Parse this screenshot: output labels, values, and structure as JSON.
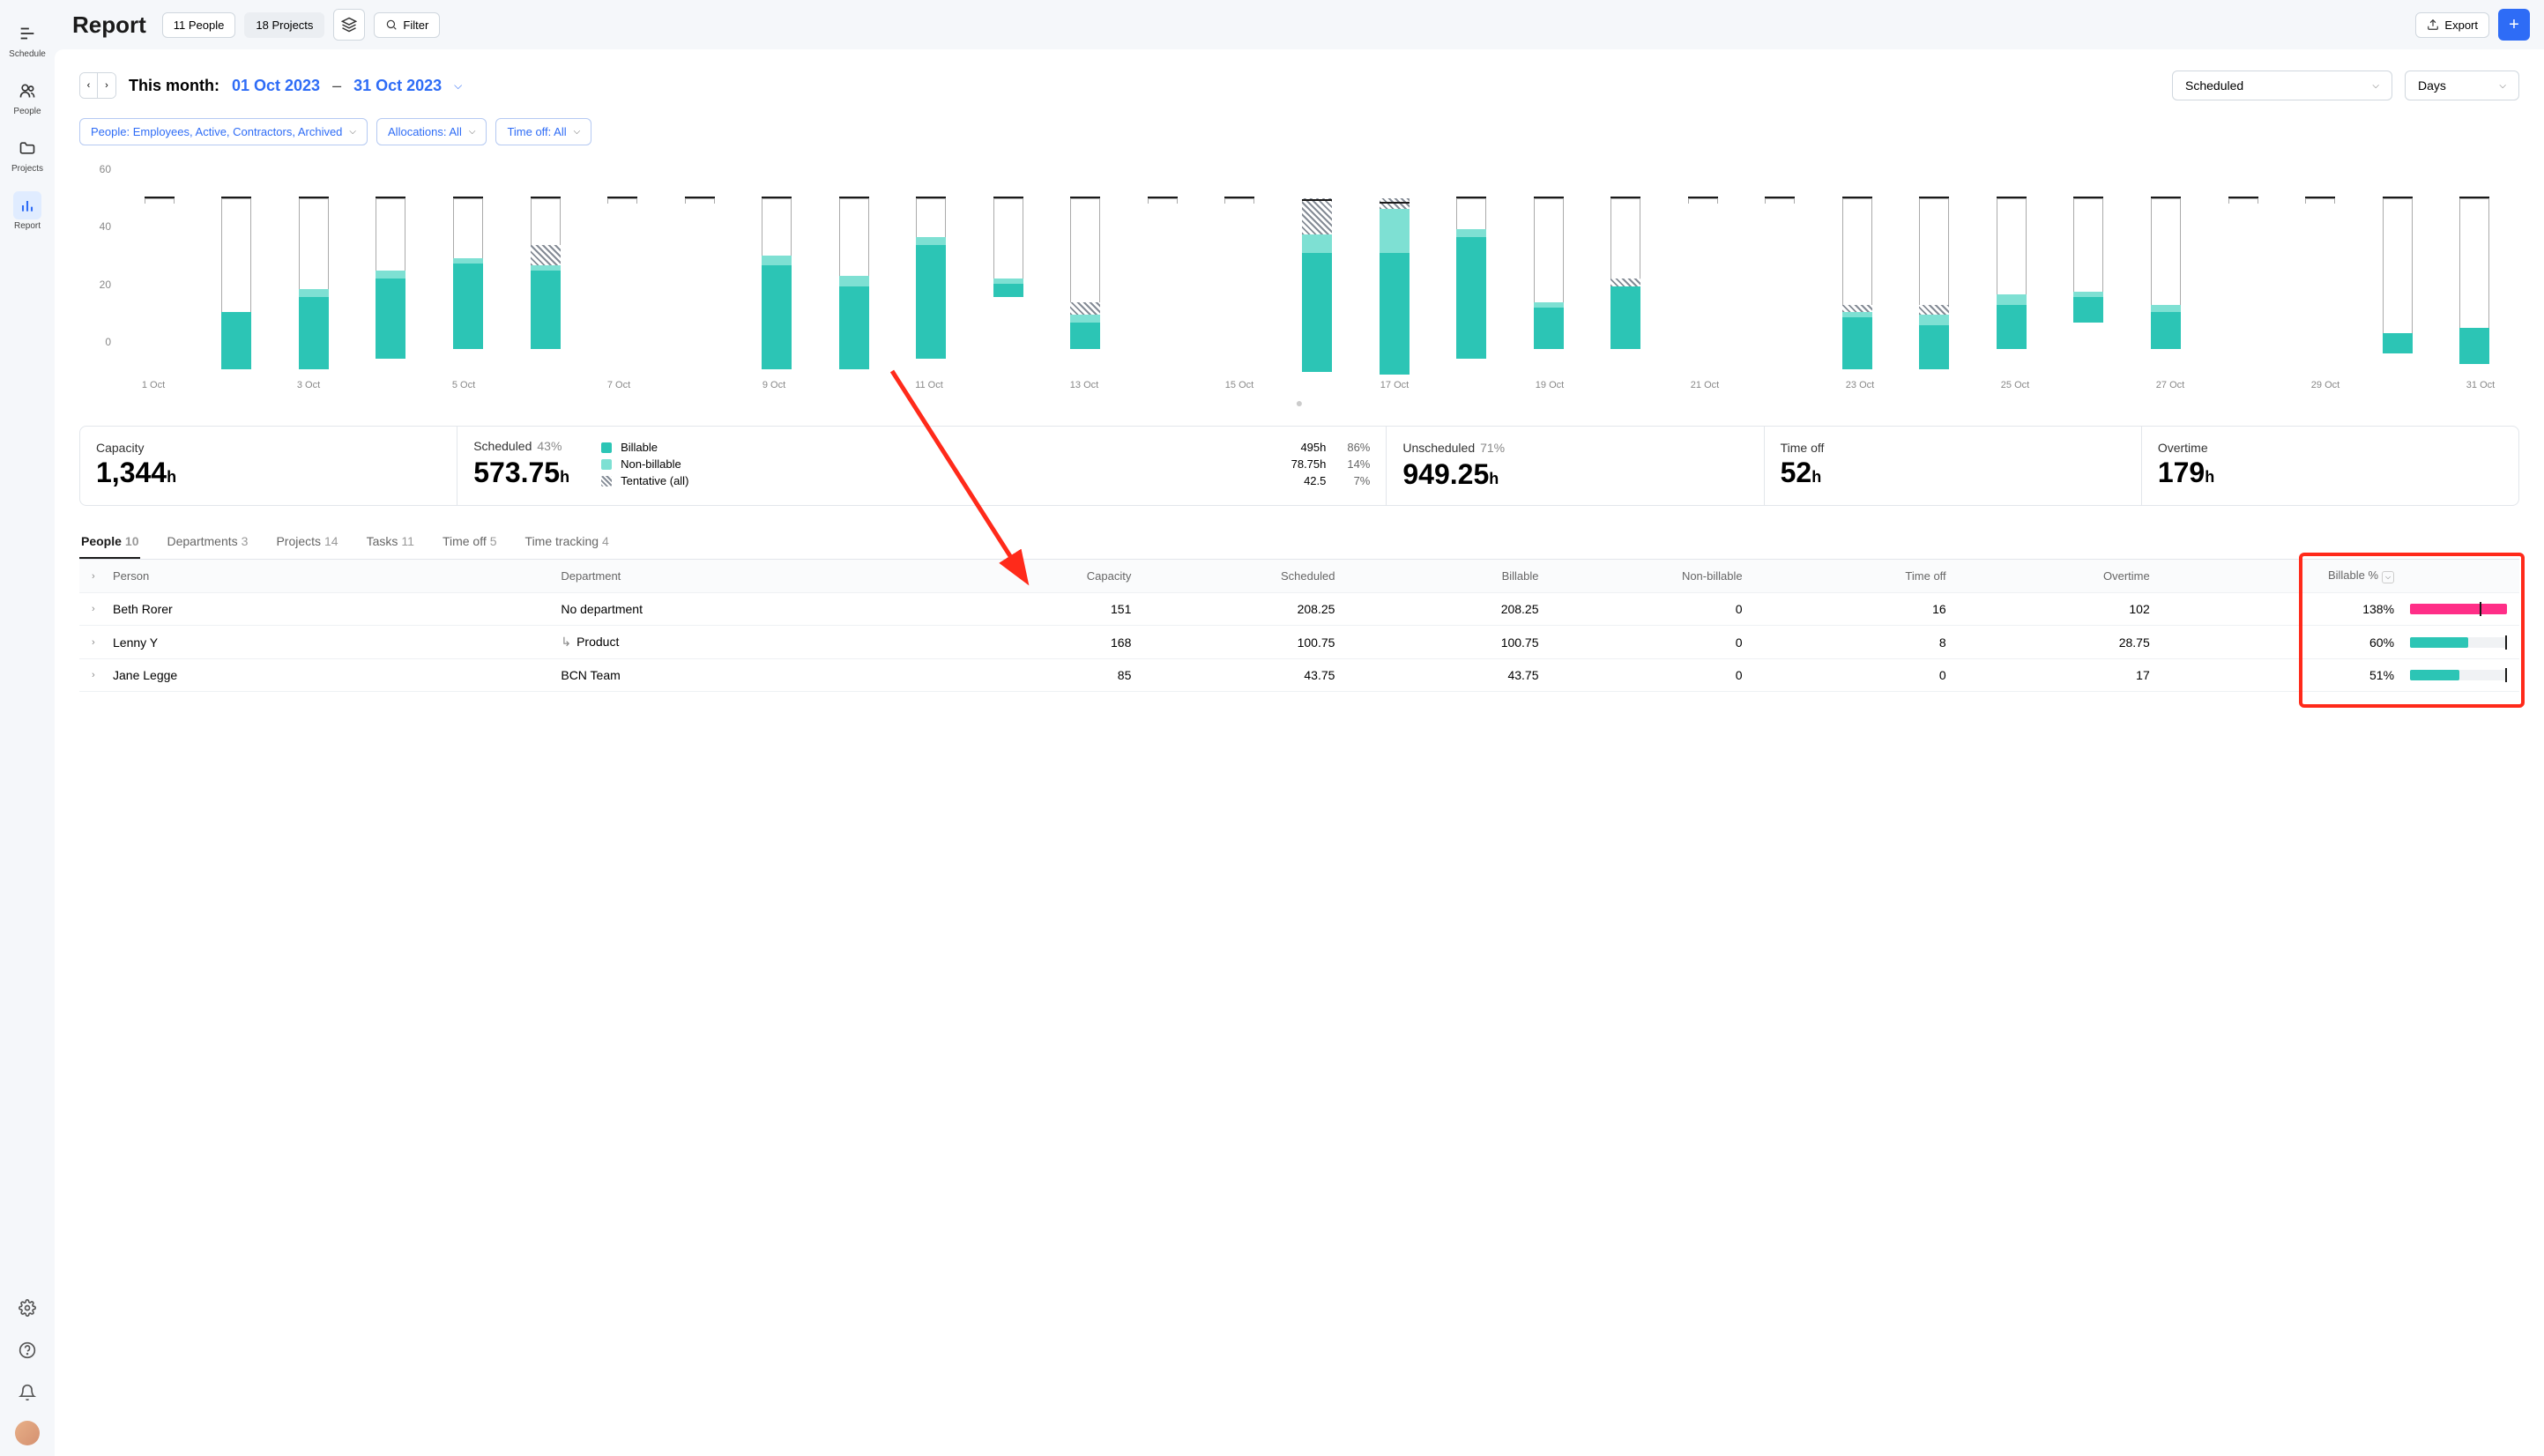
{
  "nav": {
    "items": [
      {
        "label": "Schedule",
        "icon": "schedule"
      },
      {
        "label": "People",
        "icon": "people"
      },
      {
        "label": "Projects",
        "icon": "projects"
      },
      {
        "label": "Report",
        "icon": "report",
        "active": true
      }
    ]
  },
  "header": {
    "title": "Report",
    "people_pill": "11 People",
    "projects_pill": "18 Projects",
    "filter_label": "Filter",
    "export_label": "Export"
  },
  "date": {
    "label": "This month:",
    "start": "01 Oct 2023",
    "end": "31 Oct 2023",
    "mode": "Scheduled",
    "unit": "Days"
  },
  "filters": [
    "People: Employees, Active, Contractors, Archived",
    "Allocations: All",
    "Time off: All"
  ],
  "chart": {
    "ymax": 68,
    "yticks": [
      "60",
      "40",
      "20",
      "0"
    ],
    "colors": {
      "billable": "#2cc5b5",
      "nonbillable": "#7ee0d3",
      "tentative_pattern": "#848b95",
      "capacity_line": "#1a1a1a",
      "unscheduled": "#ffffff"
    },
    "days": [
      {
        "label": "1 Oct",
        "billable": 0,
        "nonbillable": 0,
        "tentative": 0,
        "capacity": 2,
        "unscheduled": 2
      },
      {
        "label": "",
        "billable": 22,
        "nonbillable": 0,
        "tentative": 0,
        "capacity": 66,
        "unscheduled": 44
      },
      {
        "label": "3 Oct",
        "billable": 28,
        "nonbillable": 3,
        "tentative": 0,
        "capacity": 66,
        "unscheduled": 35
      },
      {
        "label": "",
        "billable": 31,
        "nonbillable": 3,
        "tentative": 0,
        "capacity": 62,
        "unscheduled": 28
      },
      {
        "label": "5 Oct",
        "billable": 33,
        "nonbillable": 2,
        "tentative": 0,
        "capacity": 58,
        "unscheduled": 23
      },
      {
        "label": "",
        "billable": 30,
        "nonbillable": 2,
        "tentative": 8,
        "capacity": 58,
        "unscheduled": 18
      },
      {
        "label": "7 Oct",
        "billable": 0,
        "nonbillable": 0,
        "tentative": 0,
        "capacity": 2,
        "unscheduled": 2
      },
      {
        "label": "",
        "billable": 0,
        "nonbillable": 0,
        "tentative": 0,
        "capacity": 2,
        "unscheduled": 2
      },
      {
        "label": "9 Oct",
        "billable": 40,
        "nonbillable": 4,
        "tentative": 0,
        "capacity": 66,
        "unscheduled": 22
      },
      {
        "label": "",
        "billable": 32,
        "nonbillable": 4,
        "tentative": 0,
        "capacity": 66,
        "unscheduled": 30
      },
      {
        "label": "11 Oct",
        "billable": 44,
        "nonbillable": 3,
        "tentative": 0,
        "capacity": 62,
        "unscheduled": 15
      },
      {
        "label": "",
        "billable": 5,
        "nonbillable": 2,
        "tentative": 0,
        "capacity": 38,
        "unscheduled": 31
      },
      {
        "label": "13 Oct",
        "billable": 10,
        "nonbillable": 3,
        "tentative": 5,
        "capacity": 58,
        "unscheduled": 40
      },
      {
        "label": "",
        "billable": 0,
        "nonbillable": 0,
        "tentative": 0,
        "capacity": 2,
        "unscheduled": 2
      },
      {
        "label": "15 Oct",
        "billable": 0,
        "nonbillable": 0,
        "tentative": 0,
        "capacity": 2,
        "unscheduled": 2
      },
      {
        "label": "",
        "billable": 46,
        "nonbillable": 7,
        "tentative": 14,
        "capacity": 66,
        "unscheduled": 0
      },
      {
        "label": "17 Oct",
        "billable": 47,
        "nonbillable": 17,
        "tentative": 4,
        "capacity": 66,
        "unscheduled": 0
      },
      {
        "label": "",
        "billable": 47,
        "nonbillable": 3,
        "tentative": 0,
        "capacity": 62,
        "unscheduled": 12
      },
      {
        "label": "19 Oct",
        "billable": 16,
        "nonbillable": 2,
        "tentative": 0,
        "capacity": 58,
        "unscheduled": 40
      },
      {
        "label": "",
        "billable": 24,
        "nonbillable": 0,
        "tentative": 3,
        "capacity": 58,
        "unscheduled": 31
      },
      {
        "label": "21 Oct",
        "billable": 0,
        "nonbillable": 0,
        "tentative": 0,
        "capacity": 2,
        "unscheduled": 2
      },
      {
        "label": "",
        "billable": 0,
        "nonbillable": 0,
        "tentative": 0,
        "capacity": 2,
        "unscheduled": 2
      },
      {
        "label": "23 Oct",
        "billable": 20,
        "nonbillable": 2,
        "tentative": 3,
        "capacity": 66,
        "unscheduled": 41
      },
      {
        "label": "",
        "billable": 17,
        "nonbillable": 4,
        "tentative": 4,
        "capacity": 66,
        "unscheduled": 41
      },
      {
        "label": "25 Oct",
        "billable": 17,
        "nonbillable": 4,
        "tentative": 0,
        "capacity": 58,
        "unscheduled": 37
      },
      {
        "label": "",
        "billable": 10,
        "nonbillable": 2,
        "tentative": 0,
        "capacity": 48,
        "unscheduled": 36
      },
      {
        "label": "27 Oct",
        "billable": 14,
        "nonbillable": 3,
        "tentative": 0,
        "capacity": 58,
        "unscheduled": 41
      },
      {
        "label": "",
        "billable": 0,
        "nonbillable": 0,
        "tentative": 0,
        "capacity": 2,
        "unscheduled": 2
      },
      {
        "label": "29 Oct",
        "billable": 0,
        "nonbillable": 0,
        "tentative": 0,
        "capacity": 2,
        "unscheduled": 2
      },
      {
        "label": "",
        "billable": 8,
        "nonbillable": 0,
        "tentative": 0,
        "capacity": 60,
        "unscheduled": 52
      },
      {
        "label": "31 Oct",
        "billable": 14,
        "nonbillable": 0,
        "tentative": 0,
        "capacity": 64,
        "unscheduled": 50
      }
    ]
  },
  "summary": {
    "capacity": {
      "title": "Capacity",
      "value": "1,344",
      "unit": "h"
    },
    "scheduled": {
      "title": "Scheduled",
      "pct": "43%",
      "value": "573.75",
      "unit": "h"
    },
    "legend": [
      {
        "swatch": "#2cc5b5",
        "label": "Billable",
        "hours": "495h",
        "pct": "86%"
      },
      {
        "swatch": "#7ee0d3",
        "label": "Non-billable",
        "hours": "78.75h",
        "pct": "14%"
      },
      {
        "swatch": "pattern",
        "label": "Tentative (all)",
        "hours": "42.5",
        "pct": "7%"
      }
    ],
    "unscheduled": {
      "title": "Unscheduled",
      "pct": "71%",
      "value": "949.25",
      "unit": "h"
    },
    "timeoff": {
      "title": "Time off",
      "value": "52",
      "unit": "h"
    },
    "overtime": {
      "title": "Overtime",
      "value": "179",
      "unit": "h"
    }
  },
  "tabs": [
    {
      "label": "People",
      "count": "10",
      "active": true
    },
    {
      "label": "Departments",
      "count": "3"
    },
    {
      "label": "Projects",
      "count": "14"
    },
    {
      "label": "Tasks",
      "count": "11"
    },
    {
      "label": "Time off",
      "count": "5"
    },
    {
      "label": "Time tracking",
      "count": "4"
    }
  ],
  "table": {
    "columns": [
      "Person",
      "Department",
      "Capacity",
      "Scheduled",
      "Billable",
      "Non-billable",
      "Time off",
      "Overtime",
      "Billable %"
    ],
    "rows": [
      {
        "person": "Beth Rorer",
        "dept": "No department",
        "dept_nested": false,
        "capacity": "151",
        "scheduled": "208.25",
        "billable": "208.25",
        "nonbillable": "0",
        "timeoff": "16",
        "overtime": "102",
        "billpct": "138%",
        "bar_fill": 100,
        "bar_color": "#ff2e87",
        "marker": 72
      },
      {
        "person": "Lenny Y",
        "dept": "Product",
        "dept_nested": true,
        "capacity": "168",
        "scheduled": "100.75",
        "billable": "100.75",
        "nonbillable": "0",
        "timeoff": "8",
        "overtime": "28.75",
        "billpct": "60%",
        "bar_fill": 60,
        "bar_color": "#2cc5b5",
        "marker": 98
      },
      {
        "person": "Jane Legge",
        "dept": "BCN Team",
        "dept_nested": false,
        "capacity": "85",
        "scheduled": "43.75",
        "billable": "43.75",
        "nonbillable": "0",
        "timeoff": "0",
        "overtime": "17",
        "billpct": "51%",
        "bar_fill": 51,
        "bar_color": "#2cc5b5",
        "marker": 98
      }
    ]
  }
}
